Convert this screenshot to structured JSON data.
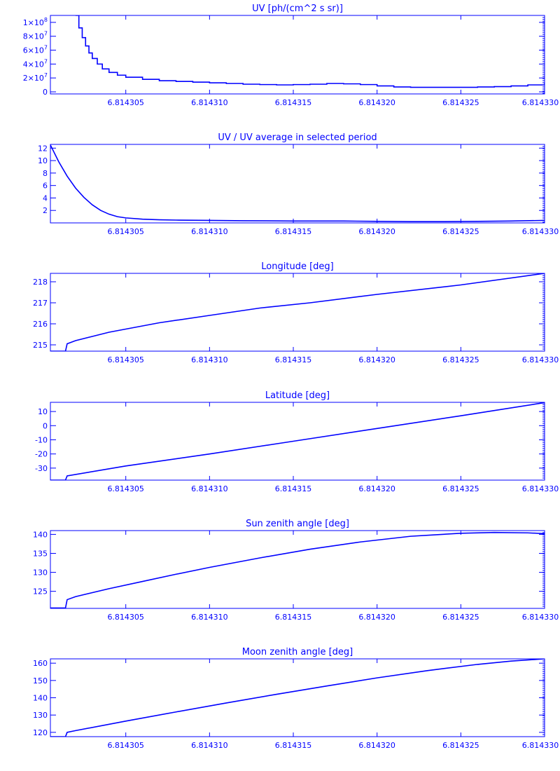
{
  "chart_data": [
    {
      "type": "line",
      "title": "UV [ph/(cm^2 s sr)]",
      "xlim": [
        6.8143005,
        6.81433
      ],
      "ylim": [
        -3000000,
        110000000
      ],
      "x_ticks": [
        6.814305,
        6.81431,
        6.814315,
        6.81432,
        6.814325,
        6.81433
      ],
      "x_tick_labels": [
        "6.814305",
        "6.814310",
        "6.814315",
        "6.814320",
        "6.814325",
        "6.814330"
      ],
      "y_ticks": [
        0,
        20000000,
        40000000,
        60000000,
        80000000,
        100000000
      ],
      "y_tick_labels": [
        {
          "base": "0",
          "exp": ""
        },
        {
          "base": "2×10",
          "exp": "7"
        },
        {
          "base": "4×10",
          "exp": "7"
        },
        {
          "base": "6×10",
          "exp": "7"
        },
        {
          "base": "8×10",
          "exp": "7"
        },
        {
          "base": "1×10",
          "exp": "8"
        }
      ],
      "series": [
        {
          "step": true,
          "x": [
            6.814302,
            6.8143022,
            6.8143024,
            6.8143026,
            6.8143028,
            6.814303,
            6.8143033,
            6.8143036,
            6.814304,
            6.8143045,
            6.814305,
            6.814306,
            6.814307,
            6.814308,
            6.814309,
            6.81431,
            6.814311,
            6.814312,
            6.814313,
            6.814314,
            6.814315,
            6.814316,
            6.814317,
            6.814318,
            6.814319,
            6.81432,
            6.814321,
            6.814322,
            6.814323,
            6.814324,
            6.814325,
            6.814326,
            6.814327,
            6.814328,
            6.814329,
            6.81433
          ],
          "y": [
            110000000,
            92000000,
            78000000,
            66000000,
            56000000,
            48000000,
            40000000,
            33000000,
            28000000,
            24000000,
            21000000,
            18000000,
            16000000,
            15000000,
            14000000,
            13000000,
            12000000,
            11000000,
            10500000,
            10000000,
            10500000,
            11000000,
            12000000,
            11500000,
            10500000,
            8500000,
            7000000,
            6500000,
            6500000,
            6500000,
            6500000,
            7000000,
            7500000,
            8500000,
            10000000,
            13000000
          ]
        }
      ]
    },
    {
      "type": "line",
      "title": "UV / UV average in selected period",
      "xlim": [
        6.8143005,
        6.81433
      ],
      "ylim": [
        0,
        12.6
      ],
      "x_ticks": [
        6.814305,
        6.81431,
        6.814315,
        6.81432,
        6.814325,
        6.81433
      ],
      "x_tick_labels": [
        "6.814305",
        "6.814310",
        "6.814315",
        "6.814320",
        "6.814325",
        "6.814330"
      ],
      "y_ticks": [
        2,
        4,
        6,
        8,
        10,
        12
      ],
      "y_tick_labels": [
        "2",
        "4",
        "6",
        "8",
        "10",
        "12"
      ],
      "series": [
        {
          "x": [
            6.8143005,
            6.814301,
            6.8143015,
            6.814302,
            6.8143025,
            6.814303,
            6.8143035,
            6.814304,
            6.8143045,
            6.814305,
            6.814306,
            6.814307,
            6.814308,
            6.81431,
            6.814312,
            6.814315,
            6.814318,
            6.81432,
            6.814322,
            6.814324,
            6.814326,
            6.814328,
            6.81433
          ],
          "y": [
            12.5,
            9.8,
            7.5,
            5.6,
            4.1,
            2.9,
            2.0,
            1.4,
            1.0,
            0.8,
            0.6,
            0.5,
            0.45,
            0.4,
            0.35,
            0.3,
            0.3,
            0.25,
            0.2,
            0.2,
            0.25,
            0.3,
            0.4
          ]
        }
      ]
    },
    {
      "type": "line",
      "title": "Longitude [deg]",
      "xlim": [
        6.8143005,
        6.81433
      ],
      "ylim": [
        214.7,
        218.4
      ],
      "x_ticks": [
        6.814305,
        6.81431,
        6.814315,
        6.81432,
        6.814325,
        6.81433
      ],
      "x_tick_labels": [
        "6.814305",
        "6.814310",
        "6.814315",
        "6.814320",
        "6.814325",
        "6.814330"
      ],
      "y_ticks": [
        215,
        216,
        217,
        218
      ],
      "y_tick_labels": [
        "215",
        "216",
        "217",
        "218"
      ],
      "series": [
        {
          "x": [
            6.8143005,
            6.8143014,
            6.8143015,
            6.814302,
            6.814303,
            6.814304,
            6.814305,
            6.814307,
            6.81431,
            6.814313,
            6.814316,
            6.81432,
            6.814325,
            6.81433
          ],
          "y": [
            214.7,
            214.7,
            215.05,
            215.2,
            215.4,
            215.6,
            215.75,
            216.05,
            216.4,
            216.75,
            217.0,
            217.4,
            217.85,
            218.4
          ]
        }
      ]
    },
    {
      "type": "line",
      "title": "Latitude [deg]",
      "xlim": [
        6.8143005,
        6.81433
      ],
      "ylim": [
        -38.5,
        16.5
      ],
      "x_ticks": [
        6.814305,
        6.81431,
        6.814315,
        6.81432,
        6.814325,
        6.81433
      ],
      "x_tick_labels": [
        "6.814305",
        "6.814310",
        "6.814315",
        "6.814320",
        "6.814325",
        "6.814330"
      ],
      "y_ticks": [
        -30,
        -20,
        -10,
        0,
        10
      ],
      "y_tick_labels": [
        "-30",
        "-20",
        "-10",
        "0",
        "10"
      ],
      "series": [
        {
          "x": [
            6.8143005,
            6.8143014,
            6.8143015,
            6.814305,
            6.81431,
            6.814315,
            6.81432,
            6.814325,
            6.81433
          ],
          "y": [
            -38.5,
            -38.5,
            -35.5,
            -28.5,
            -20.0,
            -11.0,
            -2.0,
            7.0,
            16.3
          ]
        }
      ]
    },
    {
      "type": "line",
      "title": "Sun zenith angle [deg]",
      "xlim": [
        6.8143005,
        6.81433
      ],
      "ylim": [
        120.5,
        141.0
      ],
      "x_ticks": [
        6.814305,
        6.81431,
        6.814315,
        6.81432,
        6.814325,
        6.81433
      ],
      "x_tick_labels": [
        "6.814305",
        "6.814310",
        "6.814315",
        "6.814320",
        "6.814325",
        "6.814330"
      ],
      "y_ticks": [
        125,
        130,
        135,
        140
      ],
      "y_tick_labels": [
        "125",
        "130",
        "135",
        "140"
      ],
      "series": [
        {
          "x": [
            6.8143005,
            6.8143014,
            6.8143015,
            6.814302,
            6.814304,
            6.814306,
            6.814308,
            6.81431,
            6.814313,
            6.814316,
            6.814319,
            6.814322,
            6.814325,
            6.814327,
            6.814329,
            6.81433
          ],
          "y": [
            120.6,
            120.6,
            122.8,
            123.6,
            125.7,
            127.6,
            129.5,
            131.3,
            133.8,
            136.1,
            138.0,
            139.5,
            140.3,
            140.5,
            140.4,
            140.2
          ]
        }
      ]
    },
    {
      "type": "line",
      "title": "Moon zenith angle [deg]",
      "xlim": [
        6.8143005,
        6.81433
      ],
      "ylim": [
        117.5,
        162.5
      ],
      "x_ticks": [
        6.814305,
        6.81431,
        6.814315,
        6.81432,
        6.814325,
        6.81433
      ],
      "x_tick_labels": [
        "6.814305",
        "6.814310",
        "6.814315",
        "6.814320",
        "6.814325",
        "6.814330"
      ],
      "y_ticks": [
        120,
        130,
        140,
        150,
        160
      ],
      "y_tick_labels": [
        "120",
        "130",
        "140",
        "150",
        "160"
      ],
      "series": [
        {
          "x": [
            6.8143005,
            6.8143014,
            6.8143015,
            6.814302,
            6.814305,
            6.814308,
            6.814311,
            6.814314,
            6.814317,
            6.81432,
            6.814323,
            6.814326,
            6.814328,
            6.81433
          ],
          "y": [
            117.5,
            117.5,
            120.0,
            121.0,
            126.5,
            131.8,
            137.0,
            142.0,
            146.8,
            151.5,
            155.7,
            159.3,
            161.2,
            162.5
          ]
        }
      ]
    }
  ]
}
